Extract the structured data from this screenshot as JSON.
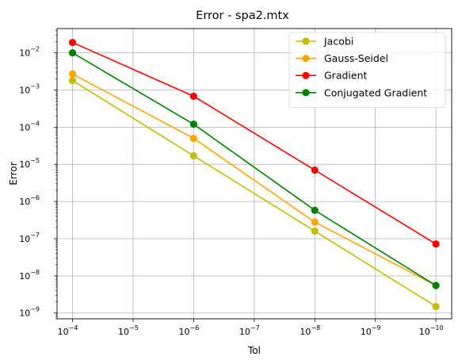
{
  "chart_data": {
    "type": "line",
    "title": "Error - spa2.mtx",
    "xlabel": "Tol",
    "ylabel": "Error",
    "x_scale": "log",
    "y_scale": "log",
    "x_reversed": true,
    "grid": true,
    "legend_position": "top-right",
    "x": [
      0.0001,
      1e-06,
      1e-08,
      1e-10
    ],
    "xlim": [
      0.00018,
      5.5e-11
    ],
    "ylim": [
      7e-10,
      0.045
    ],
    "x_ticks": [
      {
        "value": 0.0001,
        "base": "10",
        "exp": "−4"
      },
      {
        "value": 1e-05,
        "base": "10",
        "exp": "−5"
      },
      {
        "value": 1e-06,
        "base": "10",
        "exp": "−6"
      },
      {
        "value": 1e-07,
        "base": "10",
        "exp": "−7"
      },
      {
        "value": 1e-08,
        "base": "10",
        "exp": "−8"
      },
      {
        "value": 1e-09,
        "base": "10",
        "exp": "−9"
      },
      {
        "value": 1e-10,
        "base": "10",
        "exp": "−10"
      }
    ],
    "y_ticks": [
      {
        "value": 0.01,
        "base": "10",
        "exp": "−2"
      },
      {
        "value": 0.001,
        "base": "10",
        "exp": "−3"
      },
      {
        "value": 0.0001,
        "base": "10",
        "exp": "−4"
      },
      {
        "value": 1e-05,
        "base": "10",
        "exp": "−5"
      },
      {
        "value": 1e-06,
        "base": "10",
        "exp": "−6"
      },
      {
        "value": 1e-07,
        "base": "10",
        "exp": "−7"
      },
      {
        "value": 1e-08,
        "base": "10",
        "exp": "−8"
      },
      {
        "value": 1e-09,
        "base": "10",
        "exp": "−9"
      }
    ],
    "series": [
      {
        "name": "Jacobi",
        "color": "#bfbf00",
        "values": [
          0.0018,
          1.7e-05,
          1.6e-07,
          1.5e-09
        ]
      },
      {
        "name": "Gauss-Seidel",
        "color": "#ffa500",
        "values": [
          0.0027,
          5e-05,
          2.8e-07,
          5.5e-09
        ]
      },
      {
        "name": "Gradient",
        "color": "#ff0000",
        "values": [
          0.019,
          0.00068,
          7e-06,
          7.2e-08
        ]
      },
      {
        "name": "Conjugated Gradient",
        "color": "#008000",
        "values": [
          0.01,
          0.00012,
          5.8e-07,
          5.5e-09
        ]
      }
    ]
  }
}
